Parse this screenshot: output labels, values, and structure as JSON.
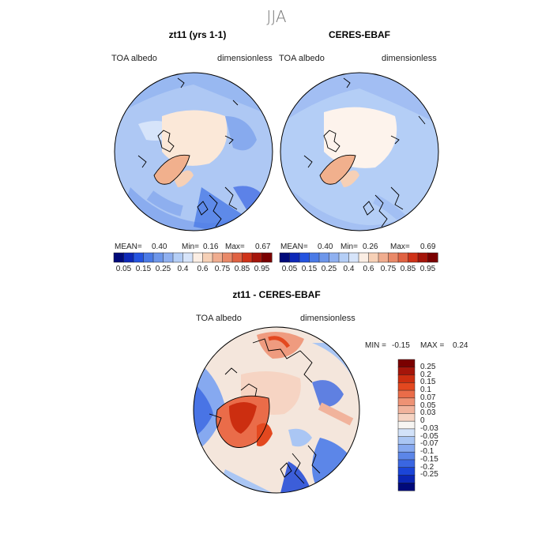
{
  "figure": {
    "season": "JJA"
  },
  "panels": [
    {
      "title": "zt11 (yrs 1-1)",
      "left_label": "TOA albedo",
      "right_label": "dimensionless",
      "stats": {
        "mean_label": "MEAN=",
        "mean": "0.40",
        "min_label": "Min=",
        "min": "0.16",
        "max_label": "Max=",
        "max": "0.67"
      }
    },
    {
      "title": "CERES-EBAF",
      "left_label": "TOA albedo",
      "right_label": "dimensionless",
      "stats": {
        "mean_label": "MEAN=",
        "mean": "0.40",
        "min_label": "Min=",
        "min": "0.26",
        "max_label": "Max=",
        "max": "0.69"
      }
    }
  ],
  "diff_panel": {
    "title": "zt11 - CERES-EBAF",
    "left_label": "TOA albedo",
    "right_label": "dimensionless",
    "stats": {
      "min_label": "MIN =",
      "min": "-0.15",
      "max_label": "MAX =",
      "max": "0.24"
    }
  },
  "colors": {
    "albedo_scale": [
      "#000a7a",
      "#0d28b8",
      "#2453e0",
      "#4a7ae6",
      "#6d96ea",
      "#8fb0f0",
      "#b4cef6",
      "#d6e4fa",
      "#fbeee4",
      "#f6d0b6",
      "#f0ad8f",
      "#e98968",
      "#e06242",
      "#cf3218",
      "#a5150a",
      "#7a0000"
    ],
    "diff_scale": [
      "#000a7a",
      "#0b26b5",
      "#1b45d8",
      "#3a66e2",
      "#5c86e8",
      "#86a9f0",
      "#aac6f4",
      "#d2e2f9",
      "#f7f5f2",
      "#f6d4c3",
      "#f1b39c",
      "#ee9274",
      "#ea6c49",
      "#e3481f",
      "#cc2e10",
      "#a5150a",
      "#7a0000"
    ],
    "land_cream": "#fbe8d8",
    "greenland": "#f1b08d"
  },
  "chart_data": [
    {
      "type": "heatmap",
      "title": "zt11 (yrs 1-1)",
      "variable": "TOA albedo",
      "units": "dimensionless",
      "projection": "north polar stereographic",
      "colorbar_ticks": [
        "0.05",
        "0.15",
        "0.25",
        "0.4",
        "0.6",
        "0.75",
        "0.85",
        "0.95"
      ],
      "mean": 0.4,
      "min": 0.16,
      "max": 0.67
    },
    {
      "type": "heatmap",
      "title": "CERES-EBAF",
      "variable": "TOA albedo",
      "units": "dimensionless",
      "projection": "north polar stereographic",
      "colorbar_ticks": [
        "0.05",
        "0.15",
        "0.25",
        "0.4",
        "0.6",
        "0.75",
        "0.85",
        "0.95"
      ],
      "mean": 0.4,
      "min": 0.26,
      "max": 0.69
    },
    {
      "type": "heatmap",
      "title": "zt11 - CERES-EBAF",
      "variable": "TOA albedo",
      "units": "dimensionless",
      "projection": "north polar stereographic",
      "colorbar_ticks": [
        "0.25",
        "0.2",
        "0.15",
        "0.1",
        "0.07",
        "0.05",
        "0.03",
        "0",
        "-0.03",
        "-0.05",
        "-0.07",
        "-0.1",
        "-0.15",
        "-0.2",
        "-0.25"
      ],
      "min": -0.15,
      "max": 0.24
    }
  ]
}
